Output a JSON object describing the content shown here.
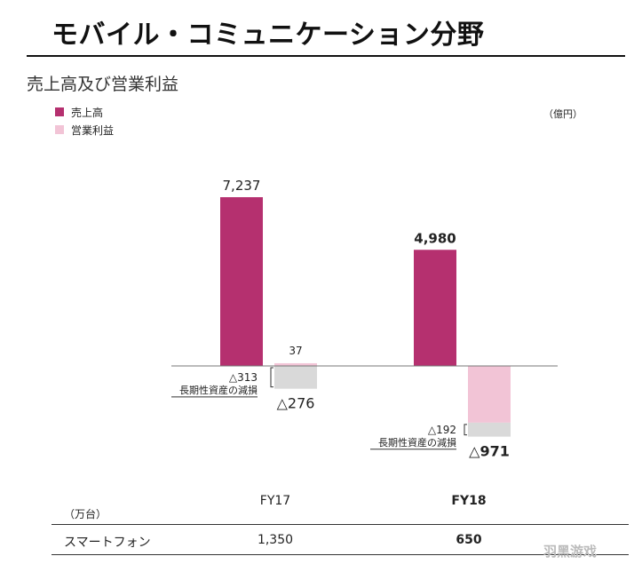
{
  "page": {
    "title": "モバイル・コミュニケーション分野",
    "subtitle": "売上高及び営業利益",
    "unit_note": "（億円）",
    "watermark": "羽黑游戏"
  },
  "legend": [
    {
      "label": "売上高",
      "color": "#b5306f"
    },
    {
      "label": "営業利益",
      "color": "#f2c4d6"
    }
  ],
  "chart_data": {
    "type": "bar",
    "categories": [
      "FY17",
      "FY18"
    ],
    "series": [
      {
        "name": "売上高",
        "values": [
          7237,
          4980
        ],
        "labels": [
          "7,237",
          "4,980"
        ],
        "color": "#b5306f"
      },
      {
        "name": "営業利益",
        "values": [
          -276,
          -971
        ],
        "labels": [
          "△276",
          "△971"
        ],
        "color": "#f2c4d6"
      }
    ],
    "profit_breakdown": [
      {
        "positive_part": 37,
        "positive_label": "37",
        "impairment": -313,
        "impairment_label": "△313",
        "note": "長期性資産の減損"
      },
      {
        "positive_part": 0,
        "positive_label": "",
        "impairment": -192,
        "impairment_label": "△192",
        "note": "長期性資産の減損"
      }
    ],
    "impairment_color": "#d9d9d9",
    "ylim": [
      -1000,
      7500
    ],
    "grid": false
  },
  "table": {
    "unit": "（万台）",
    "columns": [
      "FY17",
      "FY18"
    ],
    "rows": [
      {
        "label": "スマートフォン",
        "values": [
          "1,350",
          "650"
        ]
      }
    ]
  }
}
